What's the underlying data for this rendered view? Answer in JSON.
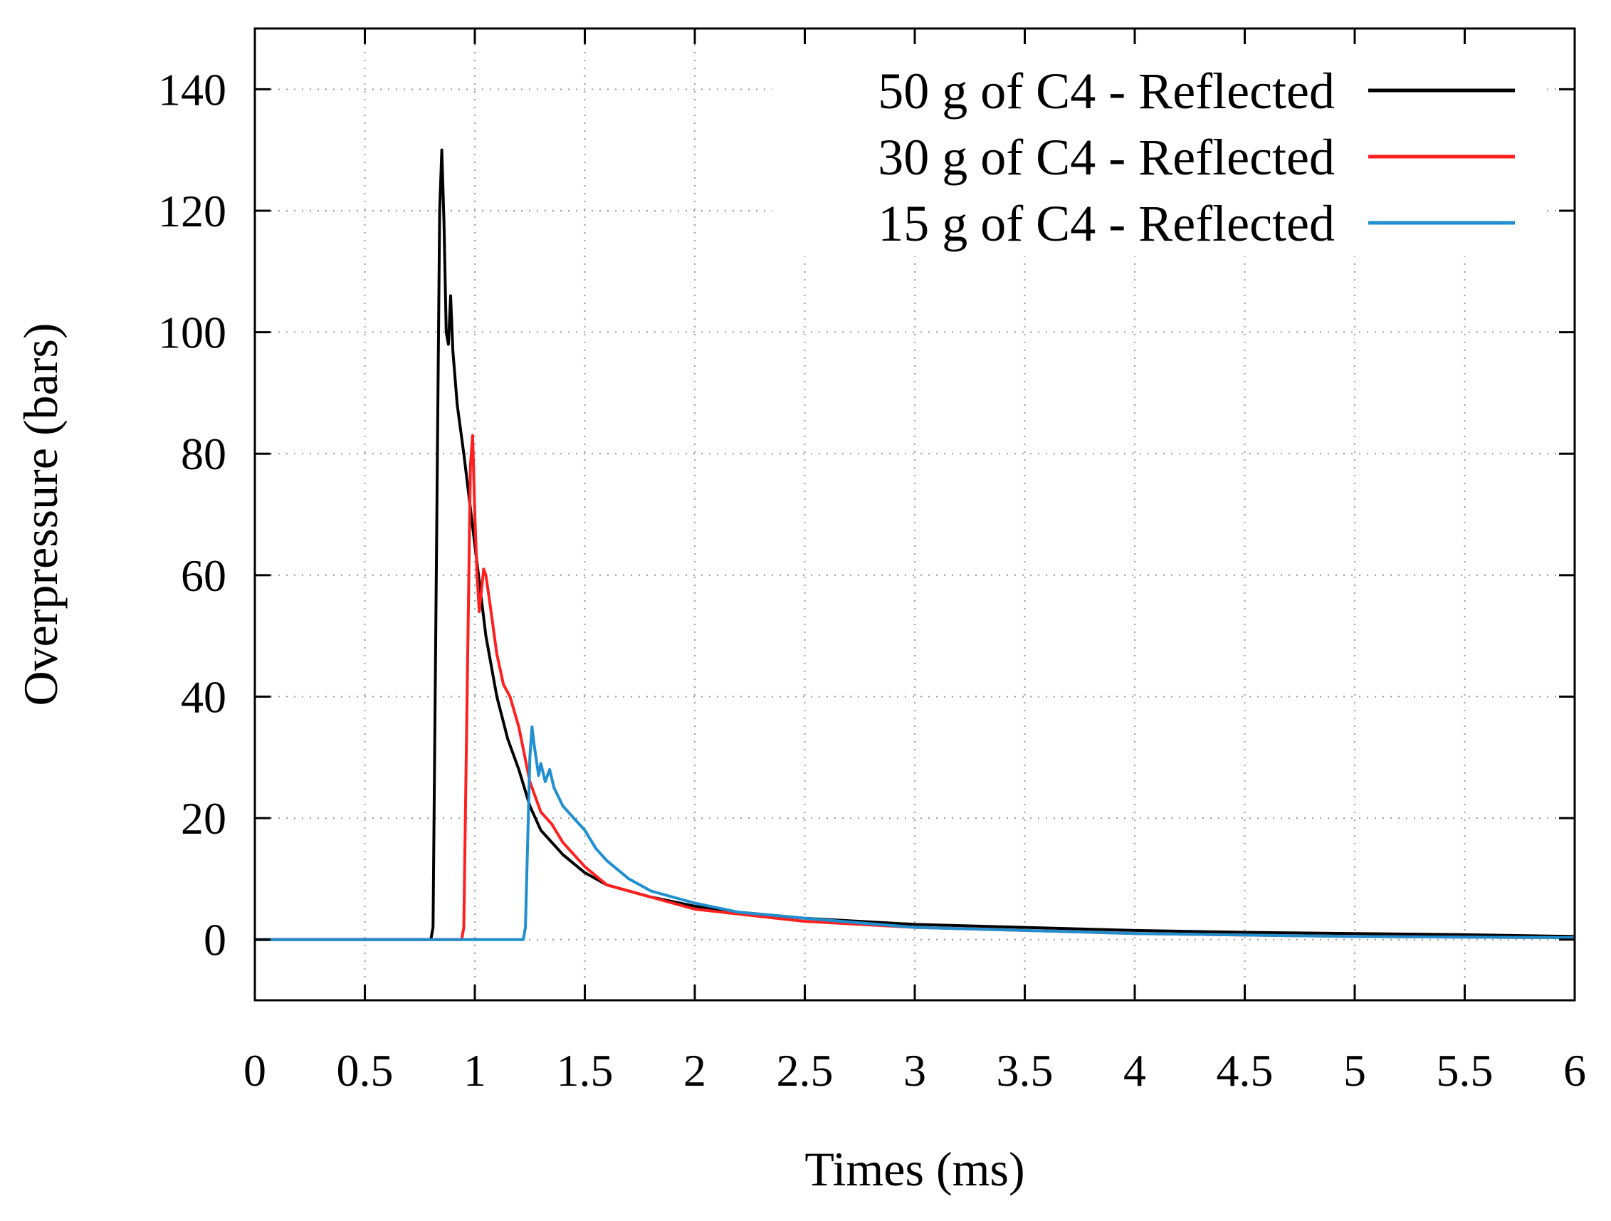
{
  "chart_data": {
    "type": "line",
    "title": "",
    "xlabel": "Times (ms)",
    "ylabel": "Overpressure (bars)",
    "xlim": [
      0,
      6
    ],
    "ylim": [
      -10,
      150
    ],
    "xticks": [
      0,
      0.5,
      1,
      1.5,
      2,
      2.5,
      3,
      3.5,
      4,
      4.5,
      5,
      5.5,
      6
    ],
    "xtick_labels": [
      "0",
      "0.5",
      "1",
      "1.5",
      "2",
      "2.5",
      "3",
      "3.5",
      "4",
      "4.5",
      "5",
      "5.5",
      "6"
    ],
    "yticks": [
      0,
      20,
      40,
      60,
      80,
      100,
      120,
      140
    ],
    "ytick_labels": [
      "0",
      "20",
      "40",
      "60",
      "80",
      "100",
      "120",
      "140"
    ],
    "grid": true,
    "legend_position": "top-right",
    "series": [
      {
        "name": "50 g of C4 - Reflected",
        "color": "#000000",
        "x": [
          0,
          0.8,
          0.81,
          0.84,
          0.85,
          0.86,
          0.87,
          0.88,
          0.89,
          0.9,
          0.92,
          0.95,
          1.0,
          1.05,
          1.1,
          1.15,
          1.2,
          1.25,
          1.3,
          1.4,
          1.5,
          1.6,
          1.8,
          2.0,
          2.2,
          2.5,
          3.0,
          3.5,
          4.0,
          4.5,
          5.0,
          5.5,
          6.0
        ],
        "y": [
          0,
          0,
          2,
          120,
          130,
          118,
          100,
          98,
          106,
          97,
          88,
          80,
          65,
          50,
          40,
          33,
          28,
          22,
          18,
          14,
          11,
          9,
          7,
          5.5,
          4.5,
          3.5,
          2.5,
          2,
          1.5,
          1.2,
          1,
          0.8,
          0.5
        ]
      },
      {
        "name": "30 g of C4 - Reflected",
        "color": "#ff1f1f",
        "x": [
          0,
          0.94,
          0.95,
          0.98,
          0.99,
          1.0,
          1.01,
          1.02,
          1.04,
          1.05,
          1.07,
          1.1,
          1.13,
          1.16,
          1.2,
          1.25,
          1.3,
          1.35,
          1.4,
          1.5,
          1.6,
          1.8,
          2.0,
          2.5,
          3.0,
          3.5,
          4.0,
          5.0,
          6.0
        ],
        "y": [
          0,
          0,
          2,
          78,
          83,
          70,
          60,
          54,
          61,
          60,
          55,
          47,
          42,
          40,
          35,
          26,
          21,
          19,
          16,
          12,
          9,
          7,
          5,
          3,
          2,
          1.5,
          1,
          0.5,
          0.3
        ]
      },
      {
        "name": "15 g of C4 - Reflected",
        "color": "#1f8fd0",
        "x": [
          0,
          1.22,
          1.23,
          1.25,
          1.26,
          1.27,
          1.29,
          1.3,
          1.32,
          1.34,
          1.36,
          1.4,
          1.45,
          1.5,
          1.55,
          1.6,
          1.7,
          1.75,
          1.8,
          1.9,
          2.0,
          2.2,
          2.5,
          3.0,
          3.5,
          4.0,
          5.0,
          6.0
        ],
        "y": [
          0,
          0,
          2,
          30,
          35,
          32,
          27,
          29,
          26,
          28,
          25,
          22,
          20,
          18,
          15,
          13,
          10,
          9,
          8,
          7,
          6,
          4.5,
          3.5,
          2,
          1.5,
          1,
          0.5,
          0.3
        ]
      }
    ]
  }
}
